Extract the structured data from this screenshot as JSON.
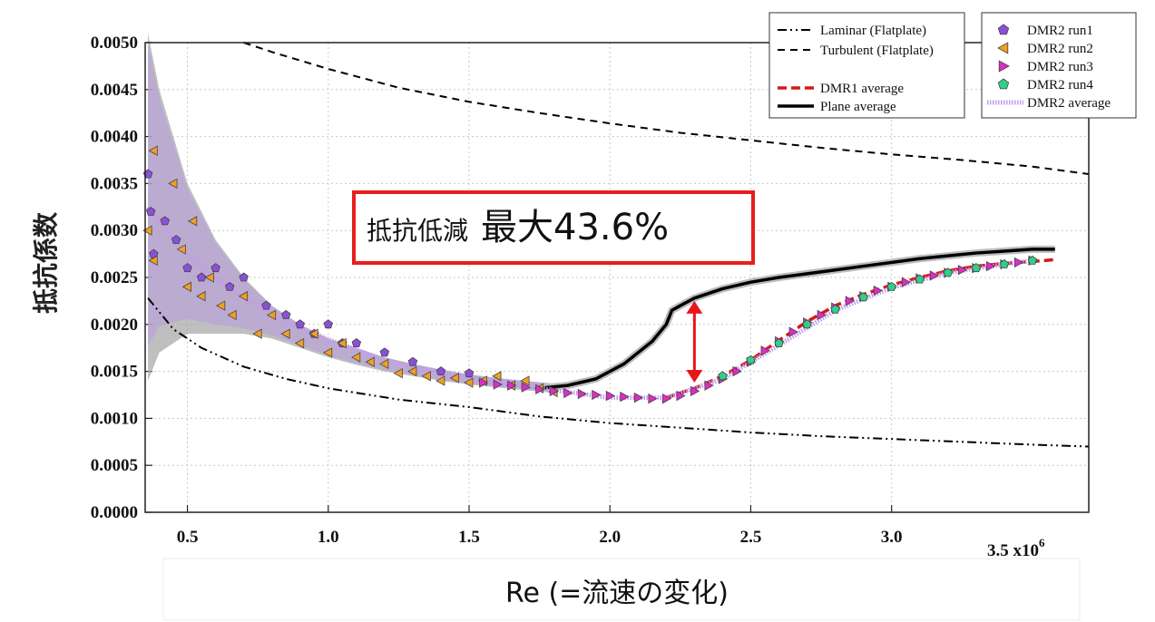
{
  "chart_data": {
    "type": "line",
    "title": "",
    "xlabel": "Re (=流速の変化)",
    "ylabel": "抵抗係数",
    "x_multiplier_label": "3.5 x10",
    "x_multiplier_exp": "6",
    "xlim": [
      0.35,
      3.7
    ],
    "ylim": [
      0.0,
      0.005
    ],
    "x_ticks": [
      0.5,
      1.0,
      1.5,
      2.0,
      2.5,
      3.0
    ],
    "x_tick_labels": [
      "0.5",
      "1.0",
      "1.5",
      "2.0",
      "2.5",
      "3.0"
    ],
    "y_ticks": [
      0.0,
      0.0005,
      0.001,
      0.0015,
      0.002,
      0.0025,
      0.003,
      0.0035,
      0.004,
      0.0045,
      0.005
    ],
    "y_tick_labels": [
      "0.0000",
      "0.0005",
      "0.0010",
      "0.0015",
      "0.0020",
      "0.0025",
      "0.0030",
      "0.0035",
      "0.0040",
      "0.0045",
      "0.0050"
    ],
    "grid": true,
    "legend_position": "top-right",
    "annotation": {
      "prefix": "抵抗低減",
      "value": "最大43.6%"
    },
    "band": {
      "x": [
        0.36,
        0.4,
        0.5,
        0.6,
        0.7,
        0.8,
        0.9,
        1.0,
        1.1,
        1.2,
        1.3,
        1.4,
        1.5,
        1.6,
        1.7,
        1.8
      ],
      "upper": [
        0.0051,
        0.0045,
        0.0035,
        0.0029,
        0.0025,
        0.0022,
        0.002,
        0.00185,
        0.00175,
        0.00165,
        0.00158,
        0.00152,
        0.00147,
        0.00143,
        0.0014,
        0.00137
      ],
      "lower": [
        0.0014,
        0.0017,
        0.0019,
        0.0019,
        0.0019,
        0.00185,
        0.00175,
        0.00165,
        0.00157,
        0.0015,
        0.00145,
        0.0014,
        0.00136,
        0.00133,
        0.0013,
        0.00127
      ]
    },
    "series": [
      {
        "name": "Laminar (Flatplate)",
        "style": "dashdotdot",
        "color": "#000000",
        "x": [
          0.36,
          0.45,
          0.55,
          0.7,
          0.85,
          1.0,
          1.25,
          1.5,
          1.75,
          2.0,
          2.25,
          2.5,
          2.75,
          3.0,
          3.25,
          3.5,
          3.7
        ],
        "y": [
          0.00228,
          0.00195,
          0.00175,
          0.00155,
          0.00142,
          0.00132,
          0.0012,
          0.00112,
          0.00102,
          0.00095,
          0.0009,
          0.00085,
          0.00081,
          0.00078,
          0.00075,
          0.00072,
          0.0007
        ]
      },
      {
        "name": "Turbulent (Flatplate)",
        "style": "dashed",
        "color": "#000000",
        "x": [
          0.7,
          0.8,
          1.0,
          1.25,
          1.5,
          1.75,
          2.0,
          2.25,
          2.5,
          2.75,
          3.0,
          3.25,
          3.5,
          3.7
        ],
        "y": [
          0.005,
          0.0049,
          0.00472,
          0.00452,
          0.00437,
          0.00425,
          0.00414,
          0.00404,
          0.00396,
          0.00388,
          0.00381,
          0.00375,
          0.00368,
          0.0036
        ]
      },
      {
        "name": "DMR1 average",
        "style": "dashed-thick",
        "color": "#d11a1a",
        "x": [
          2.2,
          2.3,
          2.4,
          2.5,
          2.6,
          2.7,
          2.8,
          2.9,
          3.0,
          3.1,
          3.2,
          3.3,
          3.4,
          3.5,
          3.58
        ],
        "y": [
          0.00122,
          0.00132,
          0.00145,
          0.00162,
          0.00183,
          0.00203,
          0.0022,
          0.00232,
          0.00242,
          0.0025,
          0.00257,
          0.00262,
          0.00265,
          0.00267,
          0.00269
        ]
      },
      {
        "name": "Plane average",
        "style": "solid-thick",
        "color": "#000000",
        "x": [
          1.75,
          1.85,
          1.95,
          2.05,
          2.15,
          2.2,
          2.22,
          2.25,
          2.3,
          2.4,
          2.5,
          2.6,
          2.7,
          2.8,
          2.9,
          3.0,
          3.1,
          3.2,
          3.3,
          3.4,
          3.5,
          3.58
        ],
        "y": [
          0.00132,
          0.00135,
          0.00142,
          0.00158,
          0.00182,
          0.002,
          0.00215,
          0.0022,
          0.00228,
          0.00238,
          0.00245,
          0.0025,
          0.00254,
          0.00258,
          0.00262,
          0.00266,
          0.0027,
          0.00273,
          0.00276,
          0.00278,
          0.0028,
          0.0028
        ]
      },
      {
        "name": "DMR2 average",
        "style": "dotted",
        "color": "#c39bea",
        "x": [
          0.36,
          0.45,
          0.55,
          0.7,
          0.85,
          1.0,
          1.2,
          1.4,
          1.6,
          1.8,
          2.0,
          2.2,
          2.4,
          2.6,
          2.8,
          3.0,
          3.2,
          3.4,
          3.5
        ],
        "y": [
          0.00325,
          0.0029,
          0.0026,
          0.00228,
          0.00203,
          0.00184,
          0.00162,
          0.00148,
          0.00139,
          0.0013,
          0.00122,
          0.00122,
          0.00142,
          0.00178,
          0.00215,
          0.00239,
          0.00255,
          0.00264,
          0.00268
        ]
      },
      {
        "name": "DMR2 run1",
        "marker": "pentagon",
        "color": "#8b4fd8",
        "x": [
          0.36,
          0.37,
          0.38,
          0.42,
          0.46,
          0.5,
          0.55,
          0.6,
          0.65,
          0.7,
          0.78,
          0.85,
          0.9,
          0.95,
          1.0,
          1.05,
          1.1,
          1.2,
          1.3,
          1.4,
          1.5
        ],
        "y": [
          0.0036,
          0.0032,
          0.00275,
          0.0031,
          0.0029,
          0.0026,
          0.0025,
          0.0026,
          0.0024,
          0.0025,
          0.0022,
          0.0021,
          0.002,
          0.0019,
          0.002,
          0.0018,
          0.0018,
          0.0017,
          0.0016,
          0.0015,
          0.00148
        ]
      },
      {
        "name": "DMR2 run2",
        "marker": "triangle-left",
        "color": "#f0a020",
        "x": [
          0.36,
          0.38,
          0.38,
          0.45,
          0.48,
          0.5,
          0.52,
          0.55,
          0.58,
          0.62,
          0.66,
          0.7,
          0.75,
          0.8,
          0.85,
          0.9,
          0.95,
          1.0,
          1.05,
          1.1,
          1.15,
          1.2,
          1.25,
          1.3,
          1.35,
          1.4,
          1.45,
          1.5,
          1.55,
          1.6,
          1.65,
          1.7,
          1.75,
          1.8
        ],
        "y": [
          0.003,
          0.00385,
          0.00268,
          0.0035,
          0.0028,
          0.0024,
          0.0031,
          0.0023,
          0.0025,
          0.0022,
          0.0021,
          0.0023,
          0.0019,
          0.0021,
          0.0019,
          0.0018,
          0.0019,
          0.0017,
          0.0018,
          0.00165,
          0.0016,
          0.00158,
          0.00148,
          0.0015,
          0.00145,
          0.0014,
          0.00143,
          0.00138,
          0.0014,
          0.00145,
          0.00135,
          0.0014,
          0.00132,
          0.00128
        ]
      },
      {
        "name": "DMR2 run3",
        "marker": "triangle-right",
        "color": "#e02bc8",
        "x": [
          1.55,
          1.6,
          1.65,
          1.7,
          1.75,
          1.8,
          1.85,
          1.9,
          1.95,
          2.0,
          2.05,
          2.1,
          2.15,
          2.2,
          2.25,
          2.3,
          2.35,
          2.4,
          2.45,
          2.5,
          2.55,
          2.6,
          2.65,
          2.7,
          2.75,
          2.8,
          2.85,
          2.9,
          2.95,
          3.0,
          3.05,
          3.1,
          3.15,
          3.2,
          3.25,
          3.3,
          3.35,
          3.4,
          3.45,
          3.5
        ],
        "y": [
          0.00138,
          0.00136,
          0.00135,
          0.00133,
          0.00131,
          0.00129,
          0.00127,
          0.00126,
          0.00125,
          0.00124,
          0.00123,
          0.00122,
          0.00121,
          0.00121,
          0.00124,
          0.00129,
          0.00135,
          0.00142,
          0.0015,
          0.0016,
          0.00172,
          0.00182,
          0.00192,
          0.00202,
          0.0021,
          0.00218,
          0.00225,
          0.0023,
          0.00236,
          0.0024,
          0.00245,
          0.00249,
          0.00252,
          0.00255,
          0.00258,
          0.0026,
          0.00262,
          0.00264,
          0.00266,
          0.00268
        ]
      },
      {
        "name": "DMR2 run4",
        "marker": "pentagon",
        "color": "#2ecf8a",
        "x": [
          2.4,
          2.5,
          2.6,
          2.7,
          2.8,
          2.9,
          3.0,
          3.1,
          3.2,
          3.3,
          3.4,
          3.5
        ],
        "y": [
          0.00145,
          0.00162,
          0.0018,
          0.002,
          0.00216,
          0.00229,
          0.0024,
          0.00248,
          0.00255,
          0.0026,
          0.00264,
          0.00268
        ]
      }
    ],
    "reduction_arrow": {
      "x": 2.3,
      "y_top": 0.00225,
      "y_bottom": 0.00138,
      "color": "#e8161a"
    }
  }
}
